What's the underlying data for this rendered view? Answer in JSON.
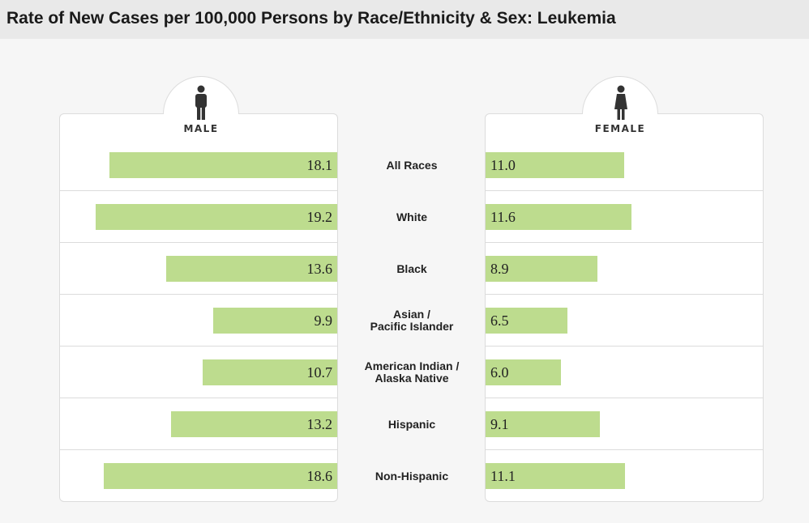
{
  "title": "Rate of New Cases per 100,000 Persons by Race/Ethnicity & Sex: Leukemia",
  "male_label": "MALE",
  "female_label": "FEMALE",
  "icons": {
    "male": "male-person-icon",
    "female": "female-person-icon"
  },
  "colors": {
    "bar": "#bddc8e",
    "header_bg": "#e9e9e9",
    "page_bg": "#f6f6f6"
  },
  "chart_data": {
    "type": "bar",
    "orientation": "horizontal-butterfly",
    "title": "Rate of New Cases per 100,000 Persons by Race/Ethnicity & Sex: Leukemia",
    "categories": [
      [
        "All Races"
      ],
      [
        "White"
      ],
      [
        "Black"
      ],
      [
        "Asian /",
        "Pacific Islander"
      ],
      [
        "American Indian /",
        "Alaska Native"
      ],
      [
        "Hispanic"
      ],
      [
        "Non-Hispanic"
      ]
    ],
    "series": [
      {
        "name": "MALE",
        "values": [
          18.1,
          19.2,
          13.6,
          9.9,
          10.7,
          13.2,
          18.6
        ],
        "labels": [
          "18.1",
          "19.2",
          "13.6",
          "9.9",
          "10.7",
          "13.2",
          "18.6"
        ]
      },
      {
        "name": "FEMALE",
        "values": [
          11.0,
          11.6,
          8.9,
          6.5,
          6.0,
          9.1,
          11.1
        ],
        "labels": [
          "11.0",
          "11.6",
          "8.9",
          "6.5",
          "6.0",
          "9.1",
          "11.1"
        ]
      }
    ],
    "xlim": [
      0,
      20
    ]
  }
}
